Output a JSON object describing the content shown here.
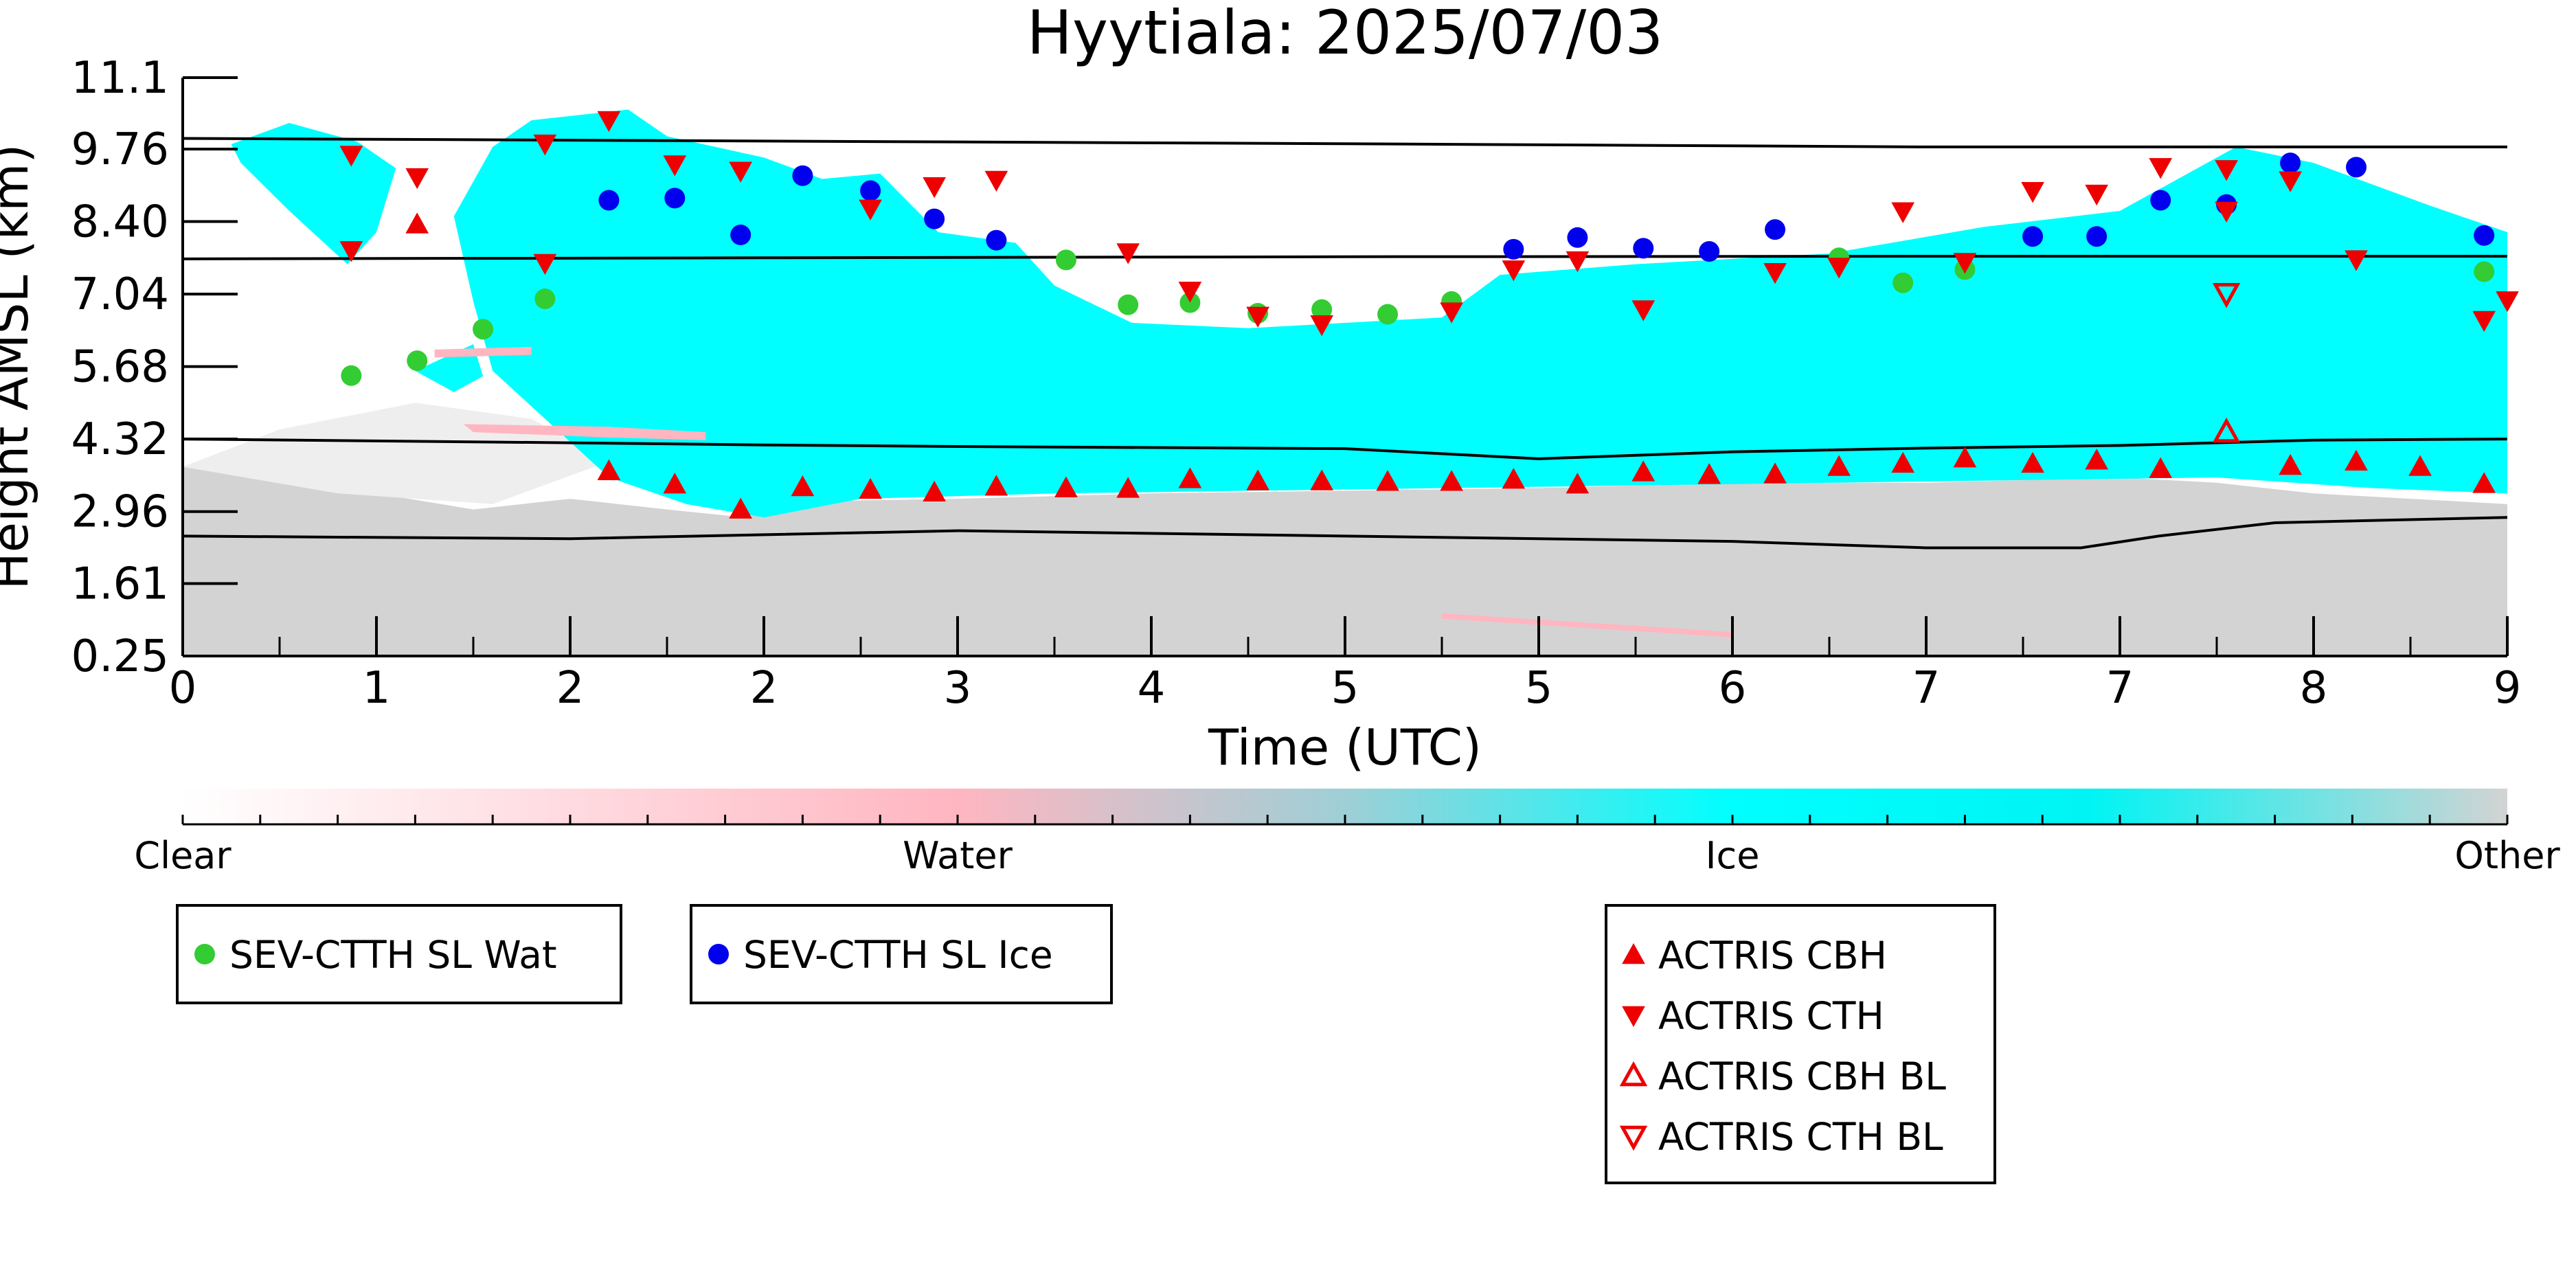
{
  "chart_data": {
    "type": "scatter",
    "title": "Hyytiala: 2025/07/03",
    "xlabel": "Time (UTC)",
    "ylabel": "Height AMSL (km)",
    "xlim": [
      0,
      12
    ],
    "ylim": [
      0.25,
      11.1
    ],
    "x_tick_positions": [
      0,
      1,
      2,
      3,
      4,
      5,
      6,
      7,
      8,
      9,
      10,
      11,
      12
    ],
    "x_tick_labels": [
      "0",
      "1",
      "2",
      "2",
      "3",
      "4",
      "5",
      "5",
      "6",
      "7",
      "7",
      "8",
      "9"
    ],
    "y_ticks": [
      "0.25",
      "1.61",
      "2.96",
      "4.32",
      "5.68",
      "7.04",
      "8.40",
      "9.76",
      "11.1"
    ],
    "y_tick_values": [
      0.25,
      1.61,
      2.96,
      4.32,
      5.68,
      7.04,
      8.4,
      9.76,
      11.1
    ],
    "background_image": "radar target classification (clear / water / ice / other)",
    "colorbar": {
      "labels": [
        "Clear",
        "Water",
        "Ice",
        "Other"
      ],
      "colors": [
        "#ffffff",
        "#ffb6c1",
        "#00ffff",
        "#d3d3d3"
      ]
    },
    "reference_lines": [
      {
        "x": [
          0,
          6,
          9,
          12
        ],
        "y": [
          9.96,
          9.86,
          9.8,
          9.8
        ]
      },
      {
        "x": [
          0,
          3,
          6,
          9,
          12
        ],
        "y": [
          7.7,
          7.72,
          7.74,
          7.75,
          7.75
        ]
      },
      {
        "x": [
          0,
          2,
          3,
          4,
          6,
          7,
          8,
          9,
          10,
          11,
          12
        ],
        "y": [
          4.32,
          4.25,
          4.21,
          4.18,
          4.14,
          3.95,
          4.08,
          4.15,
          4.2,
          4.3,
          4.32
        ]
      },
      {
        "x": [
          0,
          2,
          4,
          6,
          8,
          9,
          9.8,
          10.2,
          10.8,
          12
        ],
        "y": [
          2.5,
          2.45,
          2.6,
          2.5,
          2.4,
          2.28,
          2.28,
          2.5,
          2.75,
          2.85
        ]
      }
    ],
    "series": [
      {
        "name": "SEV-CTTH SL Wat",
        "marker": "circle",
        "color": "#33cc33",
        "points": [
          [
            0.87,
            5.51
          ],
          [
            1.21,
            5.79
          ],
          [
            1.55,
            6.38
          ],
          [
            1.87,
            6.95
          ],
          [
            4.56,
            7.68
          ],
          [
            4.88,
            6.84
          ],
          [
            5.2,
            6.88
          ],
          [
            5.55,
            6.68
          ],
          [
            5.88,
            6.75
          ],
          [
            6.22,
            6.66
          ],
          [
            6.55,
            6.9
          ],
          [
            8.55,
            7.72
          ],
          [
            8.88,
            7.25
          ],
          [
            9.2,
            7.5
          ],
          [
            11.88,
            7.46
          ]
        ]
      },
      {
        "name": "SEV-CTTH SL Ice",
        "marker": "circle",
        "color": "#0000ee",
        "points": [
          [
            2.2,
            8.8
          ],
          [
            2.54,
            8.84
          ],
          [
            2.88,
            8.15
          ],
          [
            3.2,
            9.26
          ],
          [
            3.55,
            8.98
          ],
          [
            3.88,
            8.45
          ],
          [
            4.2,
            8.05
          ],
          [
            6.87,
            7.88
          ],
          [
            7.2,
            8.1
          ],
          [
            7.54,
            7.9
          ],
          [
            7.88,
            7.84
          ],
          [
            8.22,
            8.25
          ],
          [
            9.55,
            8.12
          ],
          [
            9.88,
            8.12
          ],
          [
            10.21,
            8.8
          ],
          [
            10.55,
            8.72
          ],
          [
            10.88,
            9.5
          ],
          [
            11.22,
            9.42
          ],
          [
            11.88,
            8.14
          ]
        ]
      },
      {
        "name": "ACTRIS CBH",
        "marker": "triangle-up",
        "color": "#ee0000",
        "points": [
          [
            1.21,
            8.35
          ],
          [
            2.2,
            3.72
          ],
          [
            2.54,
            3.47
          ],
          [
            2.88,
            3.0
          ],
          [
            3.2,
            3.42
          ],
          [
            3.55,
            3.37
          ],
          [
            3.88,
            3.32
          ],
          [
            4.2,
            3.43
          ],
          [
            4.56,
            3.4
          ],
          [
            4.88,
            3.39
          ],
          [
            5.2,
            3.57
          ],
          [
            5.55,
            3.53
          ],
          [
            5.88,
            3.53
          ],
          [
            6.22,
            3.52
          ],
          [
            6.55,
            3.52
          ],
          [
            6.87,
            3.56
          ],
          [
            7.2,
            3.47
          ],
          [
            7.54,
            3.7
          ],
          [
            7.88,
            3.65
          ],
          [
            8.22,
            3.66
          ],
          [
            8.55,
            3.8
          ],
          [
            8.88,
            3.86
          ],
          [
            9.2,
            3.96
          ],
          [
            9.55,
            3.86
          ],
          [
            9.88,
            3.92
          ],
          [
            10.21,
            3.76
          ],
          [
            10.88,
            3.82
          ],
          [
            11.22,
            3.9
          ],
          [
            11.55,
            3.8
          ],
          [
            11.88,
            3.48
          ]
        ]
      },
      {
        "name": "ACTRIS CTH",
        "marker": "triangle-down",
        "color": "#ee0000",
        "points": [
          [
            0.87,
            9.65
          ],
          [
            0.87,
            7.86
          ],
          [
            1.21,
            9.23
          ],
          [
            1.87,
            9.86
          ],
          [
            1.87,
            7.62
          ],
          [
            2.2,
            10.3
          ],
          [
            2.54,
            9.47
          ],
          [
            2.88,
            9.35
          ],
          [
            3.55,
            8.64
          ],
          [
            3.88,
            9.06
          ],
          [
            4.2,
            9.18
          ],
          [
            4.88,
            7.82
          ],
          [
            5.2,
            7.1
          ],
          [
            5.55,
            6.63
          ],
          [
            5.88,
            6.47
          ],
          [
            6.55,
            6.71
          ],
          [
            6.87,
            7.5
          ],
          [
            7.2,
            7.67
          ],
          [
            7.54,
            6.75
          ],
          [
            8.22,
            7.45
          ],
          [
            8.55,
            7.55
          ],
          [
            8.88,
            8.59
          ],
          [
            9.2,
            7.64
          ],
          [
            9.55,
            8.97
          ],
          [
            9.88,
            8.92
          ],
          [
            10.21,
            9.42
          ],
          [
            10.55,
            9.38
          ],
          [
            10.55,
            8.6
          ],
          [
            10.88,
            9.17
          ],
          [
            11.22,
            7.69
          ],
          [
            11.88,
            6.55
          ],
          [
            12.0,
            6.92
          ]
        ]
      },
      {
        "name": "ACTRIS CBH BL",
        "marker": "triangle-up-open",
        "color": "#ee0000",
        "points": [
          [
            10.55,
            4.45
          ]
        ]
      },
      {
        "name": "ACTRIS CTH BL",
        "marker": "triangle-down-open",
        "color": "#ee0000",
        "points": [
          [
            10.55,
            7.05
          ]
        ]
      }
    ],
    "legends": [
      {
        "entries": [
          "SEV-CTTH SL Wat"
        ]
      },
      {
        "entries": [
          "SEV-CTTH SL Ice"
        ]
      },
      {
        "entries": [
          "ACTRIS CBH",
          "ACTRIS CTH",
          "ACTRIS CBH BL",
          "ACTRIS CTH BL"
        ]
      }
    ]
  }
}
